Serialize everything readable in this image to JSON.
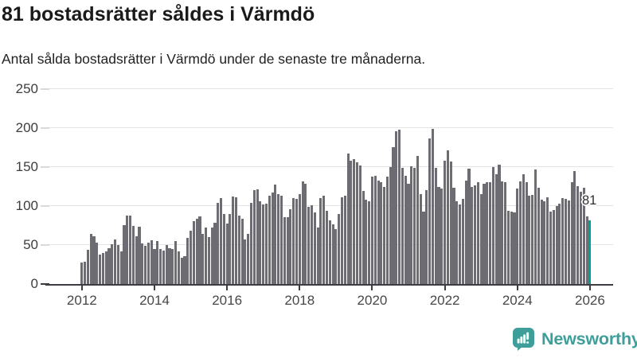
{
  "header": {
    "title": "81 bostadsrätter såldes i Värmdö",
    "subtitle": "Antal sålda bostadsrätter i Värmdö under de senaste tre månaderna."
  },
  "chart_data": {
    "type": "bar",
    "title": "81 bostadsrätter såldes i Värmdö",
    "subtitle": "Antal sålda bostadsrätter i Värmdö under de senaste tre månaderna.",
    "x_interval": "monthly",
    "start_year": 2012,
    "start_month": 1,
    "end_label": "2026",
    "x_tick_labels": [
      "2012",
      "2014",
      "2016",
      "2018",
      "2020",
      "2022",
      "2024",
      "2026"
    ],
    "y_ticks": [
      0,
      50,
      100,
      150,
      200,
      250
    ],
    "ylim": [
      0,
      250
    ],
    "grid": "horizontal",
    "legend": "none",
    "values": [
      28,
      29,
      44,
      64,
      61,
      53,
      38,
      40,
      42,
      46,
      51,
      57,
      50,
      42,
      75,
      88,
      88,
      74,
      61,
      73,
      52,
      49,
      53,
      56,
      45,
      55,
      45,
      43,
      50,
      46,
      45,
      55,
      42,
      34,
      36,
      59,
      68,
      80,
      83,
      87,
      64,
      72,
      60,
      72,
      78,
      104,
      110,
      90,
      77,
      90,
      112,
      111,
      88,
      83,
      57,
      64,
      104,
      120,
      121,
      106,
      102,
      103,
      113,
      117,
      127,
      115,
      113,
      86,
      86,
      96,
      110,
      109,
      115,
      131,
      128,
      99,
      101,
      92,
      72,
      110,
      113,
      94,
      81,
      76,
      70,
      90,
      111,
      113,
      167,
      158,
      160,
      156,
      152,
      119,
      108,
      106,
      137,
      139,
      132,
      130,
      124,
      137,
      150,
      175,
      196,
      198,
      149,
      139,
      128,
      151,
      149,
      164,
      115,
      93,
      120,
      186,
      199,
      149,
      124,
      122,
      158,
      171,
      157,
      123,
      106,
      102,
      109,
      132,
      148,
      124,
      126,
      130,
      115,
      128,
      130,
      130,
      150,
      141,
      153,
      131,
      130,
      94,
      93,
      92,
      122,
      131,
      141,
      130,
      113,
      114,
      147,
      123,
      108,
      106,
      111,
      93,
      95,
      100,
      103,
      110,
      109,
      107,
      130,
      145,
      125,
      118,
      123,
      87,
      81
    ],
    "last_value": 81,
    "annotation": "81",
    "bar_color": "#6d6c72",
    "highlight_color": "#00a29b"
  },
  "footer": {
    "brand": "Newsworthy",
    "logo_icon": "newsworthy-speech-bubble-bar-chart-icon",
    "brand_color": "#3e9e99"
  }
}
